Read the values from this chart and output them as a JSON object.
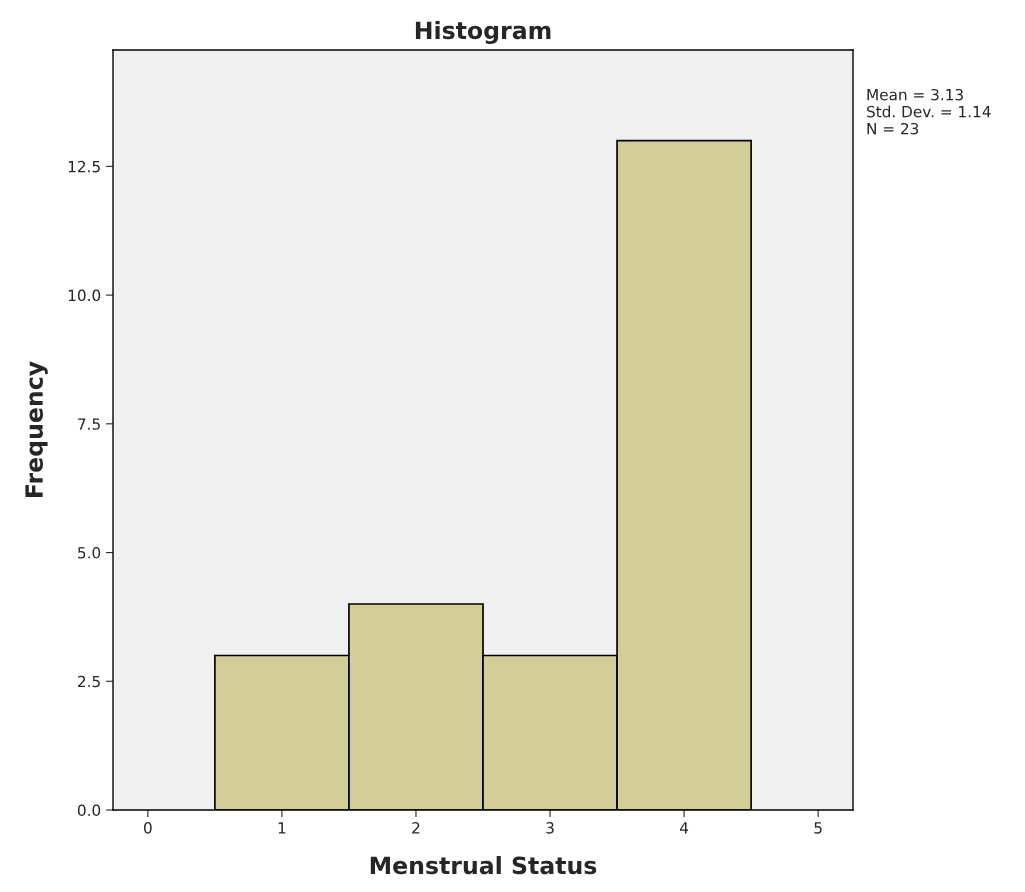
{
  "chart_data": {
    "type": "histogram",
    "title": "Histogram",
    "xlabel": "Menstrual Status",
    "ylabel": "Frequency",
    "bins": [
      0.5,
      1.5,
      2.5,
      3.5,
      4.5
    ],
    "values": [
      3,
      4,
      3,
      13
    ],
    "color": "#d3ce97",
    "xlim": [
      -0.26,
      5.26
    ],
    "xticks": [
      0,
      1,
      2,
      3,
      4,
      5
    ],
    "ylim": [
      0,
      14.76
    ],
    "yticks": [
      {
        "value": 0,
        "label": "0.0"
      },
      {
        "value": 2.5,
        "label": "2.5"
      },
      {
        "value": 5,
        "label": "5.0"
      },
      {
        "value": 7.5,
        "label": "7.5"
      },
      {
        "value": 10,
        "label": "10.0"
      },
      {
        "value": 12.5,
        "label": "12.5"
      }
    ],
    "grid": false,
    "annotations": [
      "Mean = 3.13",
      "Std. Dev. = 1.14",
      "N = 23"
    ]
  }
}
